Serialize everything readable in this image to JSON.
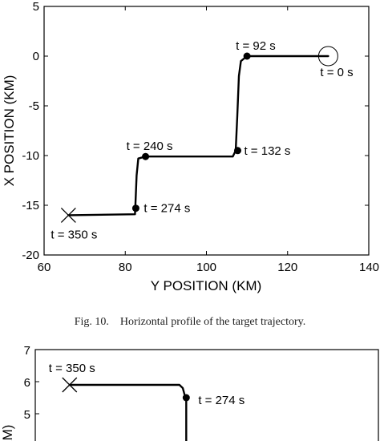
{
  "chart_data": [
    {
      "type": "line",
      "xlabel": "Y POSITION (KM)",
      "ylabel": "X POSITION (KM)",
      "xlim": [
        60,
        140
      ],
      "ylim": [
        -20,
        5
      ],
      "xticks": [
        "60",
        "80",
        "100",
        "120",
        "140"
      ],
      "yticks": [
        "5",
        "0",
        "-5",
        "-10",
        "-15",
        "-20"
      ],
      "grid": false,
      "series": [
        {
          "x": [
            130,
            110,
            108.5,
            108,
            107.6,
            107.2,
            106.5,
            85,
            83.2,
            82.8,
            82.6,
            82.4,
            66
          ],
          "y": [
            0,
            0,
            -0.5,
            -2,
            -6,
            -9.5,
            -10.1,
            -10.1,
            -10.3,
            -12,
            -14,
            -15.9,
            -16
          ]
        }
      ],
      "points": [
        {
          "x": 130,
          "y": 0,
          "label": "t = 0 s",
          "marker": "circle-open"
        },
        {
          "x": 110,
          "y": 0,
          "label": "t = 92 s",
          "marker": "dot"
        },
        {
          "x": 107.7,
          "y": -9.5,
          "label": "t = 132 s",
          "marker": "dot"
        },
        {
          "x": 85,
          "y": -10.1,
          "label": "t = 240 s",
          "marker": "dot"
        },
        {
          "x": 82.6,
          "y": -15.3,
          "label": "t = 274 s",
          "marker": "dot"
        },
        {
          "x": 66,
          "y": -16,
          "label": "t = 350 s",
          "marker": "x"
        }
      ]
    },
    {
      "type": "line",
      "xlabel": "",
      "ylabel": "(KM)",
      "ylim_visible": [
        4.5,
        7
      ],
      "yticks": [
        "7",
        "6",
        "5"
      ],
      "grid": false,
      "series": [
        {
          "x_frac": [
            0.1,
            0.42,
            0.43,
            0.44,
            0.44
          ],
          "y": [
            5.9,
            5.9,
            5.8,
            5.4,
            4.5
          ]
        }
      ],
      "points": [
        {
          "x_frac": 0.1,
          "y": 5.9,
          "label": "t = 350 s",
          "marker": "x"
        },
        {
          "x_frac": 0.44,
          "y": 5.5,
          "label": "t = 274 s",
          "marker": "dot"
        }
      ]
    }
  ],
  "caption": "Fig. 10.    Horizontal profile of the target trajectory."
}
